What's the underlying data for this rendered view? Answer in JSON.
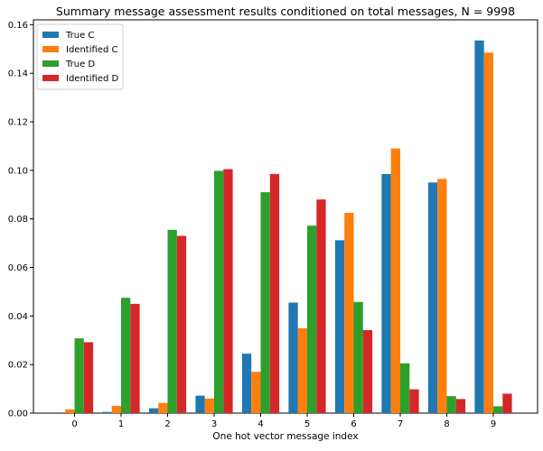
{
  "chart_data": {
    "type": "bar",
    "title": "Summary message assessment results conditioned on total messages, N = 9998",
    "xlabel": "One hot vector message index",
    "ylabel": "",
    "categories": [
      "0",
      "1",
      "2",
      "3",
      "4",
      "5",
      "6",
      "7",
      "8",
      "9"
    ],
    "ylim": [
      0,
      0.162
    ],
    "yticks": [
      "0.00",
      "0.02",
      "0.04",
      "0.06",
      "0.08",
      "0.10",
      "0.12",
      "0.14",
      "0.16"
    ],
    "grid": false,
    "legend_position": "top-left",
    "series": [
      {
        "name": "True C",
        "color": "#1f77b4",
        "values": [
          0.0,
          0.0005,
          0.002,
          0.0072,
          0.0245,
          0.0455,
          0.0712,
          0.0985,
          0.095,
          0.1535
        ]
      },
      {
        "name": "Identified C",
        "color": "#ff7f0e",
        "values": [
          0.0015,
          0.003,
          0.0042,
          0.006,
          0.017,
          0.035,
          0.0825,
          0.109,
          0.0965,
          0.1485
        ]
      },
      {
        "name": "True D",
        "color": "#2ca02c",
        "values": [
          0.0308,
          0.0475,
          0.0755,
          0.0998,
          0.091,
          0.0772,
          0.0458,
          0.0205,
          0.007,
          0.0028
        ]
      },
      {
        "name": "Identified D",
        "color": "#d62728",
        "values": [
          0.0292,
          0.045,
          0.073,
          0.1005,
          0.0985,
          0.088,
          0.0342,
          0.0098,
          0.0058,
          0.008
        ]
      }
    ]
  }
}
